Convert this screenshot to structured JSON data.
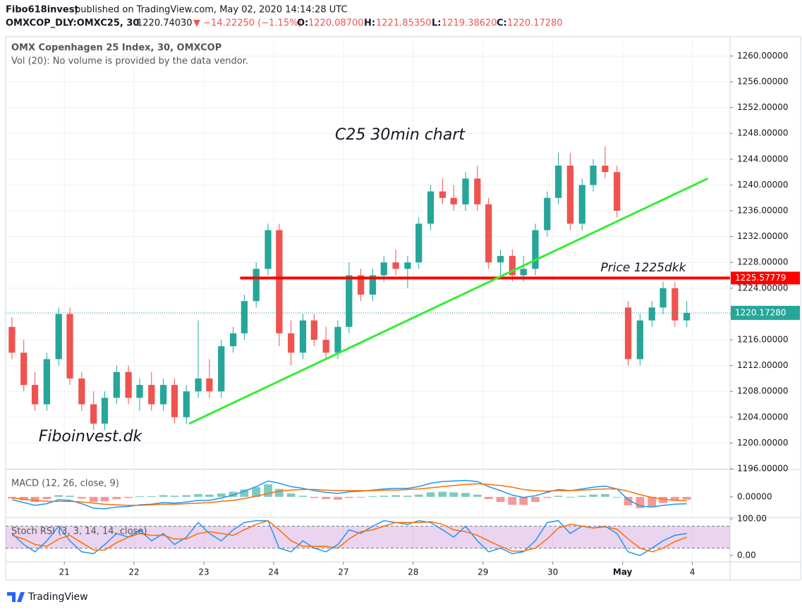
{
  "header": {
    "publisher": "Fibo618invest",
    "published": "published on TradingView.com, May 02, 2020 14:14:28 UTC",
    "symbol": "OMXCOP_DLY:OMXC25, 30",
    "last": "1220.74030",
    "change": "▼ −14.22250 (−1.15%)",
    "o_label": "O:",
    "open": "1220.08700",
    "h_label": "H:",
    "high": "1221.85350",
    "l_label": "L:",
    "low": "1219.38620",
    "c_label": "C:",
    "close": "1220.17280"
  },
  "footer": {
    "brand": "TradingView"
  },
  "chart_data": [
    {
      "type": "candlestick",
      "title": "OMX Copenhagen 25 Index, 30, OMXCOP",
      "subtitle": "Vol (20): No volume is provided by the data vendor.",
      "up_color": "#26a69a",
      "down_color": "#ef5350",
      "x": [
        0.25,
        0.42,
        0.58,
        0.75,
        0.92,
        1.08,
        1.25,
        1.42,
        1.58,
        1.75,
        1.92,
        2.08,
        2.25,
        2.42,
        2.58,
        2.75,
        2.92,
        3.08,
        3.25,
        3.42,
        3.58,
        3.75,
        3.92,
        4.08,
        4.25,
        4.42,
        4.58,
        4.75,
        4.92,
        5.08,
        5.25,
        5.42,
        5.58,
        5.75,
        5.92,
        6.08,
        6.25,
        6.42,
        6.58,
        6.75,
        6.92,
        7.08,
        7.25,
        7.42,
        7.58,
        7.75,
        7.92,
        8.08,
        8.25,
        8.42,
        8.58,
        8.75,
        8.92,
        9.08,
        9.25,
        9.42,
        9.58,
        9.75,
        9.92
      ],
      "open": [
        1218,
        1214,
        1209,
        1206,
        1213,
        1220,
        1210,
        1206,
        1203,
        1207,
        1211,
        1207,
        1209,
        1206,
        1209,
        1204,
        1208,
        1210,
        1208,
        1215,
        1217,
        1222,
        1227,
        1233,
        1217,
        1214,
        1219,
        1216,
        1214,
        1218,
        1226,
        1223,
        1226,
        1228,
        1227,
        1228,
        1234,
        1239,
        1238,
        1237,
        1241,
        1237,
        1228,
        1229,
        1226,
        1227,
        1233,
        1238,
        1243,
        1234,
        1240,
        1243,
        1242,
        1221,
        1213,
        1219,
        1221,
        1224,
        1219
      ],
      "high": [
        1219.5,
        1216,
        1211,
        1214,
        1221,
        1221,
        1211,
        1208,
        1208,
        1212,
        1212,
        1210,
        1211,
        1210,
        1210,
        1209,
        1219,
        1213,
        1216,
        1218,
        1223,
        1228,
        1234,
        1234,
        1219,
        1220,
        1220,
        1218,
        1219,
        1228,
        1227,
        1227,
        1229,
        1230,
        1229,
        1235,
        1240,
        1241,
        1240,
        1242,
        1243,
        1238,
        1230,
        1230,
        1229,
        1234,
        1239,
        1245,
        1245,
        1241,
        1244,
        1246,
        1243,
        1222,
        1220,
        1222,
        1225,
        1225,
        1222
      ],
      "low": [
        1213,
        1208,
        1205,
        1205,
        1212,
        1209,
        1205,
        1202,
        1202,
        1206,
        1206,
        1205,
        1205,
        1205,
        1203,
        1203,
        1207,
        1207,
        1207,
        1214,
        1216,
        1221,
        1226,
        1215,
        1212,
        1213,
        1215,
        1213,
        1213,
        1217,
        1222,
        1222,
        1225,
        1226,
        1224,
        1227,
        1233,
        1237,
        1236,
        1236,
        1236,
        1227,
        1226,
        1225,
        1225,
        1226,
        1232,
        1237,
        1233,
        1233,
        1239,
        1241,
        1235,
        1212,
        1212,
        1218,
        1220,
        1218,
        1218
      ],
      "close": [
        1214,
        1209,
        1206,
        1213,
        1220,
        1210,
        1206,
        1203,
        1207,
        1211,
        1207,
        1209,
        1206,
        1209,
        1204,
        1208,
        1210,
        1208,
        1215,
        1217,
        1222,
        1227,
        1233,
        1217,
        1214,
        1219,
        1216,
        1214,
        1218,
        1226,
        1223,
        1226,
        1228,
        1227,
        1228,
        1234,
        1239,
        1238,
        1237,
        1241,
        1237,
        1228,
        1229,
        1226,
        1227,
        1233,
        1238,
        1243,
        1234,
        1240,
        1243,
        1242,
        1236,
        1213,
        1219,
        1221,
        1224,
        1219,
        1220.1728
      ],
      "xlim": [
        0.16,
        10.54
      ],
      "xticks": [
        {
          "value": 1,
          "label": "21"
        },
        {
          "value": 2,
          "label": "22"
        },
        {
          "value": 3,
          "label": "23"
        },
        {
          "value": 4,
          "label": "24"
        },
        {
          "value": 5,
          "label": "27"
        },
        {
          "value": 6,
          "label": "28"
        },
        {
          "value": 7,
          "label": "29"
        },
        {
          "value": 8,
          "label": "30"
        },
        {
          "value": 9,
          "label": "May"
        },
        {
          "value": 10,
          "label": "4"
        }
      ],
      "ylim": [
        1196,
        1263
      ],
      "yticks": [
        {
          "value": 1196,
          "label": "1196.00000"
        },
        {
          "value": 1200,
          "label": "1200.00000"
        },
        {
          "value": 1204,
          "label": "1204.00000"
        },
        {
          "value": 1208,
          "label": "1208.00000"
        },
        {
          "value": 1212,
          "label": "1212.00000"
        },
        {
          "value": 1216,
          "label": "1216.00000"
        },
        {
          "value": 1220,
          "label": "1220.00000"
        },
        {
          "value": 1224,
          "label": "1224.00000"
        },
        {
          "value": 1228,
          "label": "1228.00000"
        },
        {
          "value": 1232,
          "label": "1232.00000"
        },
        {
          "value": 1236,
          "label": "1236.00000"
        },
        {
          "value": 1240,
          "label": "1240.00000"
        },
        {
          "value": 1244,
          "label": "1244.00000"
        },
        {
          "value": 1248,
          "label": "1248.00000"
        },
        {
          "value": 1252,
          "label": "1252.00000"
        },
        {
          "value": 1256,
          "label": "1256.00000"
        },
        {
          "value": 1260,
          "label": "1260.00000"
        }
      ],
      "grid": true,
      "hline": {
        "value": 1225.57779,
        "x_start": 3.52,
        "color": "#ff0000"
      },
      "price_line": {
        "value": 1220.1728,
        "label": "1220.17280",
        "color": "#26a69a"
      },
      "trendline": {
        "x": [
          2.79,
          10.22
        ],
        "y": [
          1203,
          1241
        ],
        "color": "#33ee33"
      },
      "annotations": [
        {
          "text": "C25 30min chart"
        },
        {
          "text": "Price 1225dkk"
        },
        {
          "text": "Fiboinvest.dk"
        }
      ]
    },
    {
      "type": "line",
      "title": "MACD (12, 26, close, 9)",
      "histogram": true,
      "series": [
        {
          "name": "MACD",
          "color": "#2196f3",
          "values": [
            -0.5,
            -1,
            -1.5,
            -1.2,
            -0.5,
            -0.6,
            -1.2,
            -2,
            -2.1,
            -1.8,
            -1.7,
            -1.4,
            -1.3,
            -1,
            -1.1,
            -0.9,
            -0.6,
            -0.6,
            -0.2,
            0.3,
            1,
            1.8,
            2.8,
            2.4,
            1.8,
            1.5,
            1.1,
            0.8,
            0.6,
            0.9,
            1,
            1.2,
            1.4,
            1.5,
            1.5,
            1.8,
            2.4,
            2.7,
            2.8,
            2.9,
            2.7,
            1.8,
            1.1,
            0.3,
            -0.1,
            0.2,
            0.8,
            1.3,
            1.1,
            1.4,
            1.7,
            1.9,
            1.4,
            -0.5,
            -1.6,
            -1.8,
            -1.5,
            -1.3,
            -1.2
          ]
        },
        {
          "name": "Signal",
          "color": "#ff6d00",
          "values": [
            -0.2,
            -0.4,
            -0.6,
            -0.8,
            -0.8,
            -0.8,
            -0.9,
            -1.1,
            -1.3,
            -1.4,
            -1.5,
            -1.5,
            -1.4,
            -1.3,
            -1.3,
            -1.2,
            -1.1,
            -1,
            -0.8,
            -0.6,
            -0.3,
            0.1,
            0.6,
            1,
            1.2,
            1.3,
            1.3,
            1.2,
            1.1,
            1.1,
            1.1,
            1.1,
            1.2,
            1.2,
            1.3,
            1.4,
            1.6,
            1.8,
            2,
            2.2,
            2.3,
            2.2,
            2,
            1.7,
            1.3,
            1.1,
            1,
            1.1,
            1.1,
            1.2,
            1.3,
            1.4,
            1.4,
            1,
            0.4,
            -0.1,
            -0.4,
            -0.6,
            -0.7
          ]
        }
      ],
      "ylim": [
        -3.5,
        4.7
      ],
      "yticks": [
        {
          "value": 0,
          "label": "0.00000"
        }
      ]
    },
    {
      "type": "line",
      "title": "Stoch RSI (3, 3, 14, 14, close)",
      "bands": [
        20,
        80
      ],
      "band_color": "#9c27b0",
      "series": [
        {
          "name": "K",
          "color": "#2196f3",
          "values": [
            60,
            30,
            10,
            40,
            80,
            40,
            10,
            5,
            30,
            60,
            50,
            70,
            40,
            60,
            30,
            50,
            90,
            60,
            40,
            70,
            90,
            95,
            95,
            20,
            10,
            40,
            20,
            10,
            30,
            70,
            60,
            80,
            95,
            90,
            85,
            95,
            90,
            70,
            50,
            80,
            40,
            10,
            20,
            5,
            10,
            40,
            90,
            95,
            60,
            80,
            75,
            80,
            60,
            10,
            0,
            20,
            40,
            55,
            60
          ]
        },
        {
          "name": "D",
          "color": "#ff6d00",
          "values": [
            55,
            45,
            30,
            25,
            45,
            55,
            35,
            15,
            15,
            35,
            50,
            60,
            55,
            55,
            45,
            45,
            60,
            65,
            60,
            55,
            70,
            85,
            95,
            70,
            40,
            25,
            25,
            25,
            20,
            45,
            65,
            70,
            80,
            90,
            90,
            90,
            92,
            85,
            70,
            65,
            55,
            40,
            25,
            12,
            12,
            20,
            45,
            75,
            85,
            80,
            75,
            78,
            72,
            45,
            20,
            10,
            20,
            38,
            50
          ]
        }
      ],
      "ylim": [
        -17.3,
        101.9
      ],
      "yticks": [
        {
          "value": 100,
          "label": "100.00"
        },
        {
          "value": 0,
          "label": "0.00"
        }
      ]
    }
  ]
}
